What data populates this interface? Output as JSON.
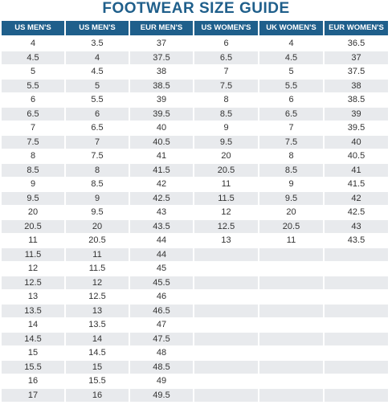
{
  "title": "FOOTWEAR SIZE GUIDE",
  "colors": {
    "header_bg": "#1f5f8b",
    "header_text": "#ffffff",
    "title_text": "#1f5f8b",
    "row_alt": "#e8eaed",
    "row": "#ffffff"
  },
  "row_count": 27,
  "columns": [
    {
      "header": "US MEN'S",
      "values": [
        "4",
        "4.5",
        "5",
        "5.5",
        "6",
        "6.5",
        "7",
        "7.5",
        "8",
        "8.5",
        "9",
        "9.5",
        "20",
        "20.5",
        "11",
        "11.5",
        "12",
        "12.5",
        "13",
        "13.5",
        "14",
        "14.5",
        "15",
        "15.5",
        "16",
        "17"
      ]
    },
    {
      "header": "US MEN'S",
      "values": [
        "3.5",
        "4",
        "4.5",
        "5",
        "5.5",
        "6",
        "6.5",
        "7",
        "7.5",
        "8",
        "8.5",
        "9",
        "9.5",
        "20",
        "20.5",
        "11",
        "11.5",
        "12",
        "12.5",
        "13",
        "13.5",
        "14",
        "14.5",
        "15",
        "15.5",
        "16"
      ]
    },
    {
      "header": "EUR MEN'S",
      "values": [
        "37",
        "37.5",
        "38",
        "38.5",
        "39",
        "39.5",
        "40",
        "40.5",
        "41",
        "41.5",
        "42",
        "42.5",
        "43",
        "43.5",
        "44",
        "44",
        "45",
        "45.5",
        "46",
        "46.5",
        "47",
        "47.5",
        "48",
        "48.5",
        "49",
        "49.5"
      ]
    },
    {
      "header": "US WOMEN'S",
      "values": [
        "6",
        "6.5",
        "7",
        "7.5",
        "8",
        "8.5",
        "9",
        "9.5",
        "20",
        "20.5",
        "11",
        "11.5",
        "12",
        "12.5",
        "13"
      ]
    },
    {
      "header": "UK WOMEN'S",
      "values": [
        "4",
        "4.5",
        "5",
        "5.5",
        "6",
        "6.5",
        "7",
        "7.5",
        "8",
        "8.5",
        "9",
        "9.5",
        "20",
        "20.5",
        "11"
      ]
    },
    {
      "header": "EUR WOMEN'S",
      "values": [
        "36.5",
        "37",
        "37.5",
        "38",
        "38.5",
        "39",
        "39.5",
        "40",
        "40.5",
        "41",
        "41.5",
        "42",
        "42.5",
        "43",
        "43.5"
      ]
    }
  ]
}
